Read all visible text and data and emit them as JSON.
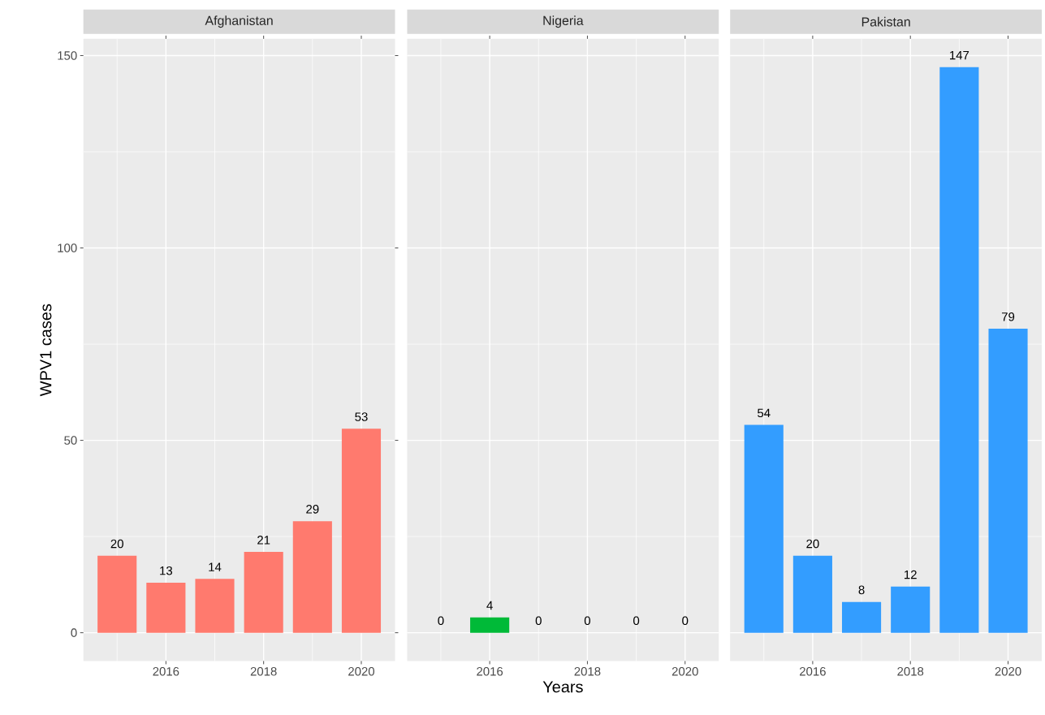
{
  "chart_data": [
    {
      "type": "bar",
      "title": "Afghanistan",
      "ylabel": "WPV1 cases",
      "x": [
        2015,
        2016,
        2017,
        2018,
        2019,
        2020
      ],
      "values": [
        20,
        13,
        14,
        21,
        29,
        53
      ],
      "color": "#ff7a6e",
      "data_labels": true,
      "xlim": [
        2014.31,
        2020.69
      ],
      "ylim": [
        -7.35,
        154.35
      ],
      "xticks": [
        2016,
        2018,
        2020
      ],
      "yticks": [
        0,
        50,
        100,
        150
      ],
      "grid": true
    },
    {
      "type": "bar",
      "title": "Nigeria",
      "xlabel": "Years",
      "x": [
        2015,
        2016,
        2017,
        2018,
        2019,
        2020
      ],
      "values": [
        0,
        4,
        0,
        0,
        0,
        0
      ],
      "color": "#00ba38",
      "data_labels": true,
      "xlim": [
        2014.31,
        2020.69
      ],
      "ylim": [
        -7.35,
        154.35
      ],
      "xticks": [
        2016,
        2018,
        2020
      ],
      "yticks": [
        0,
        50,
        100,
        150
      ],
      "grid": true,
      "tick_labels": "x"
    },
    {
      "type": "bar",
      "title": "Pakistan",
      "x": [
        2015,
        2016,
        2017,
        2018,
        2019,
        2020
      ],
      "values": [
        54,
        20,
        8,
        12,
        147,
        79
      ],
      "color": "#339dff",
      "data_labels": true,
      "xlim": [
        2014.31,
        2020.69
      ],
      "ylim": [
        -7.35,
        154.35
      ],
      "xticks": [
        2016,
        2018,
        2020
      ],
      "yticks": [
        0,
        50,
        100,
        150
      ],
      "grid": true,
      "tick_labels": "x"
    }
  ]
}
